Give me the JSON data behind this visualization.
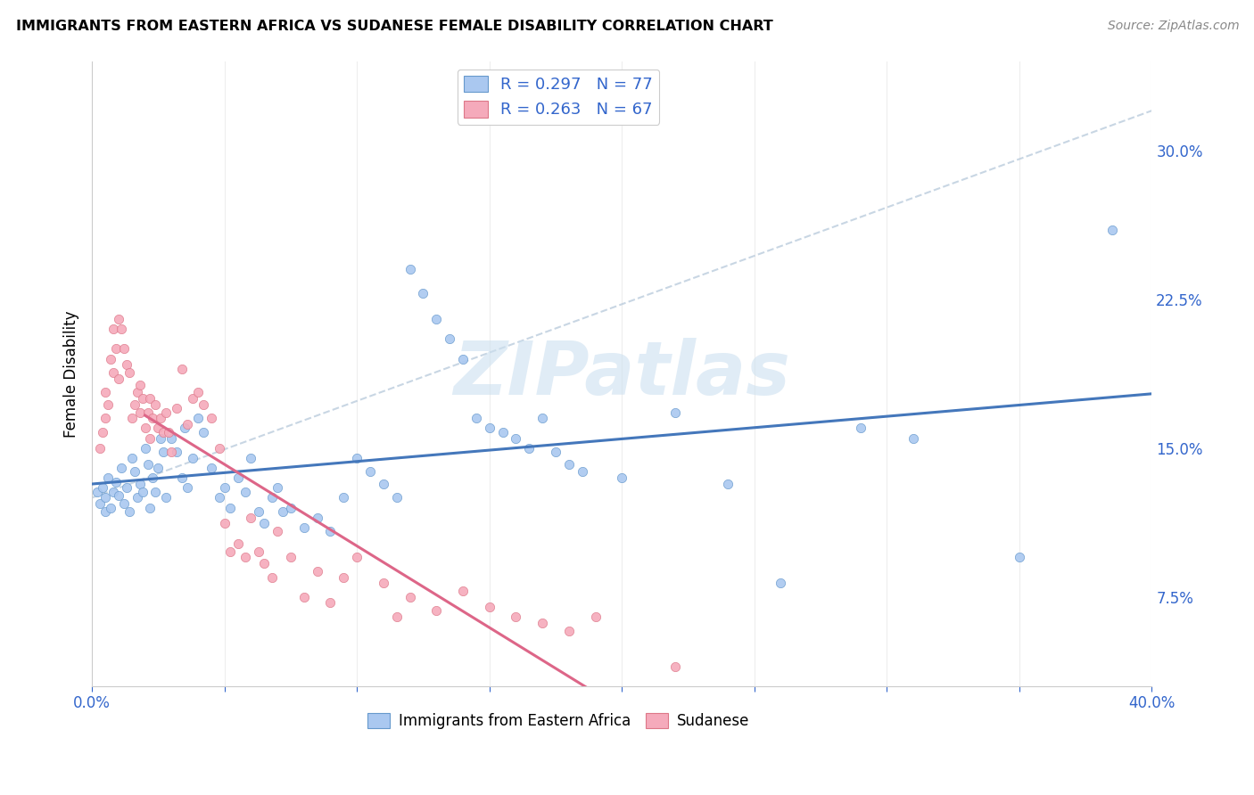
{
  "title": "IMMIGRANTS FROM EASTERN AFRICA VS SUDANESE FEMALE DISABILITY CORRELATION CHART",
  "source": "Source: ZipAtlas.com",
  "ylabel": "Female Disability",
  "ytick_labels": [
    "7.5%",
    "15.0%",
    "22.5%",
    "30.0%"
  ],
  "ytick_values": [
    0.075,
    0.15,
    0.225,
    0.3
  ],
  "xlim": [
    0.0,
    0.4
  ],
  "ylim": [
    0.03,
    0.345
  ],
  "blue_color": "#aac8f0",
  "blue_edge_color": "#6699cc",
  "blue_line_color": "#4477bb",
  "blue_dash_color": "#bbccdd",
  "pink_color": "#f5aabb",
  "pink_edge_color": "#dd7788",
  "pink_line_color": "#dd6688",
  "blue_R": 0.297,
  "blue_N": 77,
  "pink_R": 0.263,
  "pink_N": 67,
  "blue_scatter": [
    [
      0.002,
      0.128
    ],
    [
      0.003,
      0.122
    ],
    [
      0.004,
      0.13
    ],
    [
      0.005,
      0.125
    ],
    [
      0.005,
      0.118
    ],
    [
      0.006,
      0.135
    ],
    [
      0.007,
      0.12
    ],
    [
      0.008,
      0.128
    ],
    [
      0.009,
      0.133
    ],
    [
      0.01,
      0.126
    ],
    [
      0.011,
      0.14
    ],
    [
      0.012,
      0.122
    ],
    [
      0.013,
      0.13
    ],
    [
      0.014,
      0.118
    ],
    [
      0.015,
      0.145
    ],
    [
      0.016,
      0.138
    ],
    [
      0.017,
      0.125
    ],
    [
      0.018,
      0.132
    ],
    [
      0.019,
      0.128
    ],
    [
      0.02,
      0.15
    ],
    [
      0.021,
      0.142
    ],
    [
      0.022,
      0.12
    ],
    [
      0.023,
      0.135
    ],
    [
      0.024,
      0.128
    ],
    [
      0.025,
      0.14
    ],
    [
      0.026,
      0.155
    ],
    [
      0.027,
      0.148
    ],
    [
      0.028,
      0.125
    ],
    [
      0.03,
      0.155
    ],
    [
      0.032,
      0.148
    ],
    [
      0.034,
      0.135
    ],
    [
      0.035,
      0.16
    ],
    [
      0.036,
      0.13
    ],
    [
      0.038,
      0.145
    ],
    [
      0.04,
      0.165
    ],
    [
      0.042,
      0.158
    ],
    [
      0.045,
      0.14
    ],
    [
      0.048,
      0.125
    ],
    [
      0.05,
      0.13
    ],
    [
      0.052,
      0.12
    ],
    [
      0.055,
      0.135
    ],
    [
      0.058,
      0.128
    ],
    [
      0.06,
      0.145
    ],
    [
      0.063,
      0.118
    ],
    [
      0.065,
      0.112
    ],
    [
      0.068,
      0.125
    ],
    [
      0.07,
      0.13
    ],
    [
      0.072,
      0.118
    ],
    [
      0.075,
      0.12
    ],
    [
      0.08,
      0.11
    ],
    [
      0.085,
      0.115
    ],
    [
      0.09,
      0.108
    ],
    [
      0.095,
      0.125
    ],
    [
      0.1,
      0.145
    ],
    [
      0.105,
      0.138
    ],
    [
      0.11,
      0.132
    ],
    [
      0.115,
      0.125
    ],
    [
      0.12,
      0.24
    ],
    [
      0.125,
      0.228
    ],
    [
      0.13,
      0.215
    ],
    [
      0.135,
      0.205
    ],
    [
      0.14,
      0.195
    ],
    [
      0.145,
      0.165
    ],
    [
      0.15,
      0.16
    ],
    [
      0.155,
      0.158
    ],
    [
      0.16,
      0.155
    ],
    [
      0.165,
      0.15
    ],
    [
      0.17,
      0.165
    ],
    [
      0.175,
      0.148
    ],
    [
      0.18,
      0.142
    ],
    [
      0.185,
      0.138
    ],
    [
      0.2,
      0.135
    ],
    [
      0.22,
      0.168
    ],
    [
      0.24,
      0.132
    ],
    [
      0.26,
      0.082
    ],
    [
      0.29,
      0.16
    ],
    [
      0.31,
      0.155
    ],
    [
      0.35,
      0.095
    ],
    [
      0.385,
      0.26
    ]
  ],
  "pink_scatter": [
    [
      0.003,
      0.15
    ],
    [
      0.004,
      0.158
    ],
    [
      0.005,
      0.165
    ],
    [
      0.005,
      0.178
    ],
    [
      0.006,
      0.172
    ],
    [
      0.007,
      0.195
    ],
    [
      0.008,
      0.188
    ],
    [
      0.008,
      0.21
    ],
    [
      0.009,
      0.2
    ],
    [
      0.01,
      0.185
    ],
    [
      0.01,
      0.215
    ],
    [
      0.011,
      0.21
    ],
    [
      0.012,
      0.2
    ],
    [
      0.013,
      0.192
    ],
    [
      0.014,
      0.188
    ],
    [
      0.015,
      0.165
    ],
    [
      0.016,
      0.172
    ],
    [
      0.017,
      0.178
    ],
    [
      0.018,
      0.168
    ],
    [
      0.018,
      0.182
    ],
    [
      0.019,
      0.175
    ],
    [
      0.02,
      0.16
    ],
    [
      0.021,
      0.168
    ],
    [
      0.022,
      0.155
    ],
    [
      0.022,
      0.175
    ],
    [
      0.023,
      0.165
    ],
    [
      0.024,
      0.172
    ],
    [
      0.025,
      0.16
    ],
    [
      0.026,
      0.165
    ],
    [
      0.027,
      0.158
    ],
    [
      0.028,
      0.168
    ],
    [
      0.029,
      0.158
    ],
    [
      0.03,
      0.148
    ],
    [
      0.032,
      0.17
    ],
    [
      0.034,
      0.19
    ],
    [
      0.036,
      0.162
    ],
    [
      0.038,
      0.175
    ],
    [
      0.04,
      0.178
    ],
    [
      0.042,
      0.172
    ],
    [
      0.045,
      0.165
    ],
    [
      0.048,
      0.15
    ],
    [
      0.05,
      0.112
    ],
    [
      0.052,
      0.098
    ],
    [
      0.055,
      0.102
    ],
    [
      0.058,
      0.095
    ],
    [
      0.06,
      0.115
    ],
    [
      0.063,
      0.098
    ],
    [
      0.065,
      0.092
    ],
    [
      0.068,
      0.085
    ],
    [
      0.07,
      0.108
    ],
    [
      0.075,
      0.095
    ],
    [
      0.08,
      0.075
    ],
    [
      0.085,
      0.088
    ],
    [
      0.09,
      0.072
    ],
    [
      0.095,
      0.085
    ],
    [
      0.1,
      0.095
    ],
    [
      0.11,
      0.082
    ],
    [
      0.115,
      0.065
    ],
    [
      0.12,
      0.075
    ],
    [
      0.13,
      0.068
    ],
    [
      0.14,
      0.078
    ],
    [
      0.15,
      0.07
    ],
    [
      0.16,
      0.065
    ],
    [
      0.17,
      0.062
    ],
    [
      0.18,
      0.058
    ],
    [
      0.19,
      0.065
    ],
    [
      0.22,
      0.04
    ]
  ],
  "background_color": "#ffffff",
  "grid_color": "#dddddd",
  "watermark": "ZIPatlas",
  "watermark_color": "#cce0f0",
  "legend_color": "#3366cc"
}
